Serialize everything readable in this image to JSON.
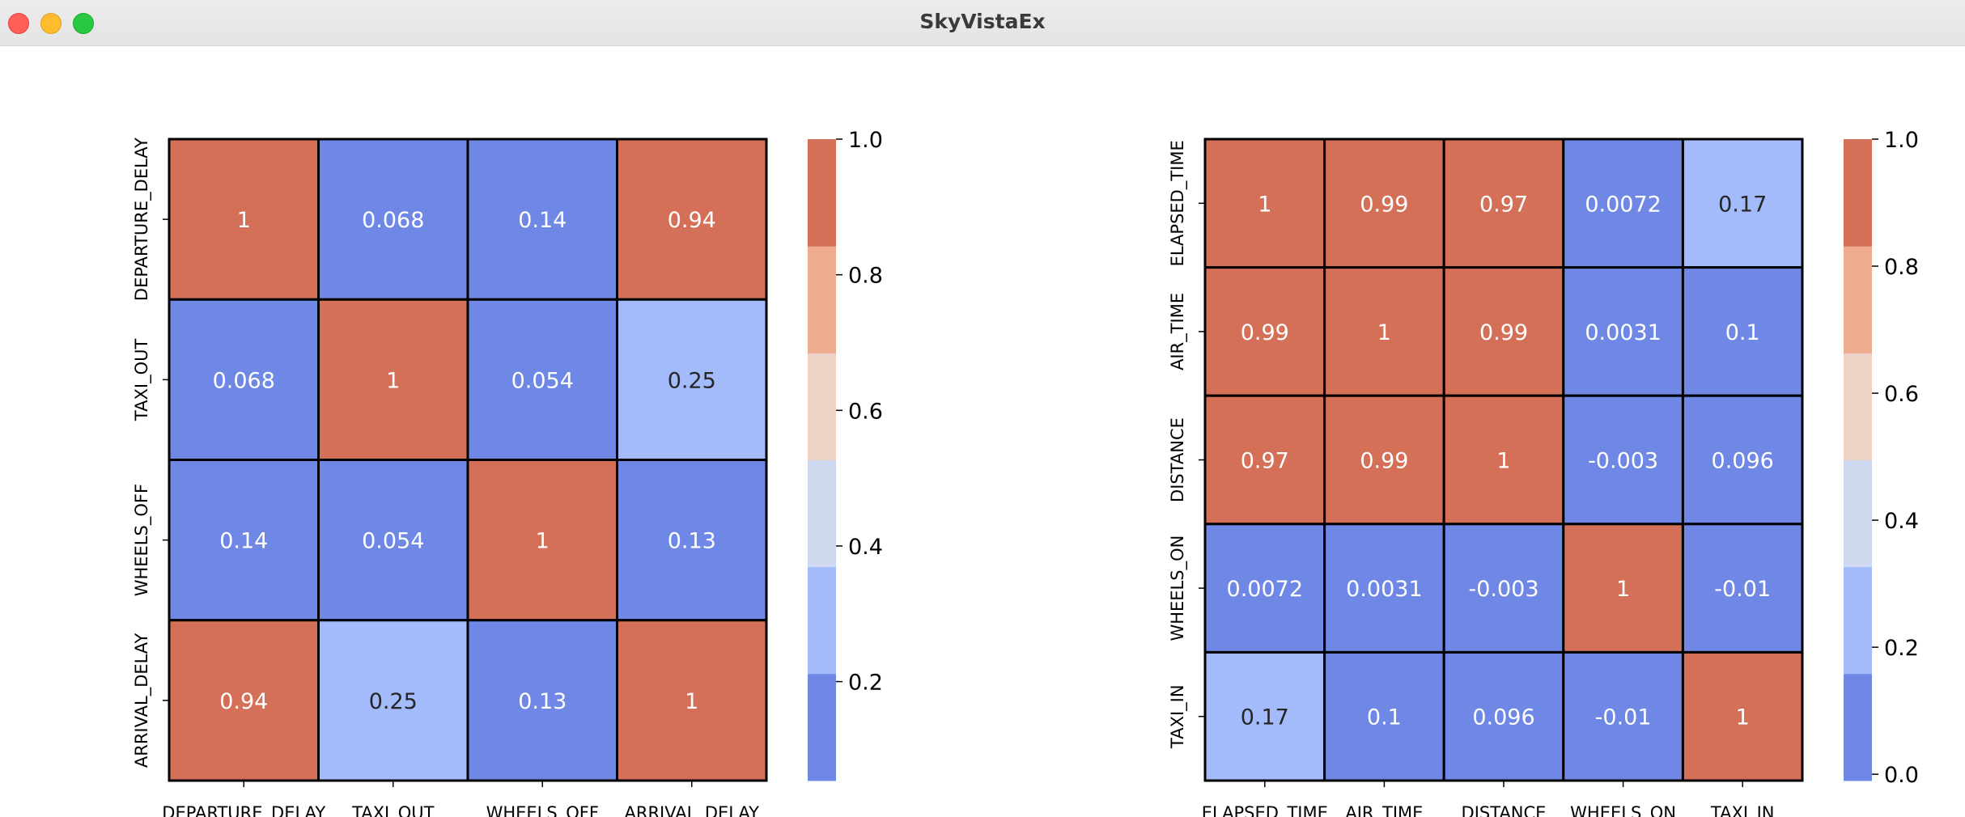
{
  "window": {
    "title": "SkyVistaEx"
  },
  "colors": {
    "bins": [
      "#6f88e5",
      "#a3bafb",
      "#ced9f0",
      "#eed4c6",
      "#eeab8e",
      "#d47058"
    ],
    "grid": "#000000",
    "text_light": "#ffffff",
    "text_dark": "#262626"
  },
  "chart_data": [
    {
      "type": "heatmap",
      "title": "",
      "xlabel": "",
      "ylabel": "",
      "x_labels": [
        "DEPARTURE_DELAY",
        "TAXI_OUT",
        "WHEELS_OFF",
        "ARRIVAL_DELAY"
      ],
      "y_labels": [
        "DEPARTURE_DELAY",
        "TAXI_OUT",
        "WHEELS_OFF",
        "ARRIVAL_DELAY"
      ],
      "values": [
        [
          1,
          0.068,
          0.14,
          0.94
        ],
        [
          0.068,
          1,
          0.054,
          0.25
        ],
        [
          0.14,
          0.054,
          1,
          0.13
        ],
        [
          0.94,
          0.25,
          0.13,
          1
        ]
      ],
      "value_labels": [
        [
          "1",
          "0.068",
          "0.14",
          "0.94"
        ],
        [
          "0.068",
          "1",
          "0.054",
          "0.25"
        ],
        [
          "0.14",
          "0.054",
          "1",
          "0.13"
        ],
        [
          "0.94",
          "0.25",
          "0.13",
          "1"
        ]
      ],
      "colorbar": {
        "vmin": 0.054,
        "vmax": 1.0,
        "ticks": [
          0.2,
          0.4,
          0.6,
          0.8,
          1.0
        ],
        "tick_labels": [
          "0.2",
          "0.4",
          "0.6",
          "0.8",
          "1.0"
        ]
      }
    },
    {
      "type": "heatmap",
      "title": "",
      "xlabel": "",
      "ylabel": "",
      "x_labels": [
        "ELAPSED_TIME",
        "AIR_TIME",
        "DISTANCE",
        "WHEELS_ON",
        "TAXI_IN"
      ],
      "y_labels": [
        "ELAPSED_TIME",
        "AIR_TIME",
        "DISTANCE",
        "WHEELS_ON",
        "TAXI_IN"
      ],
      "values": [
        [
          1,
          0.99,
          0.97,
          0.0072,
          0.17
        ],
        [
          0.99,
          1,
          0.99,
          0.0031,
          0.1
        ],
        [
          0.97,
          0.99,
          1,
          -0.003,
          0.096
        ],
        [
          0.0072,
          0.0031,
          -0.003,
          1,
          -0.01
        ],
        [
          0.17,
          0.1,
          0.096,
          -0.01,
          1
        ]
      ],
      "value_labels": [
        [
          "1",
          "0.99",
          "0.97",
          "0.0072",
          "0.17"
        ],
        [
          "0.99",
          "1",
          "0.99",
          "0.0031",
          "0.1"
        ],
        [
          "0.97",
          "0.99",
          "1",
          "-0.003",
          "0.096"
        ],
        [
          "0.0072",
          "0.0031",
          "-0.003",
          "1",
          "-0.01"
        ],
        [
          "0.17",
          "0.1",
          "0.096",
          "-0.01",
          "1"
        ]
      ],
      "colorbar": {
        "vmin": -0.01,
        "vmax": 1.0,
        "ticks": [
          0.0,
          0.2,
          0.4,
          0.6,
          0.8,
          1.0
        ],
        "tick_labels": [
          "0.0",
          "0.2",
          "0.4",
          "0.6",
          "0.8",
          "1.0"
        ]
      }
    }
  ]
}
